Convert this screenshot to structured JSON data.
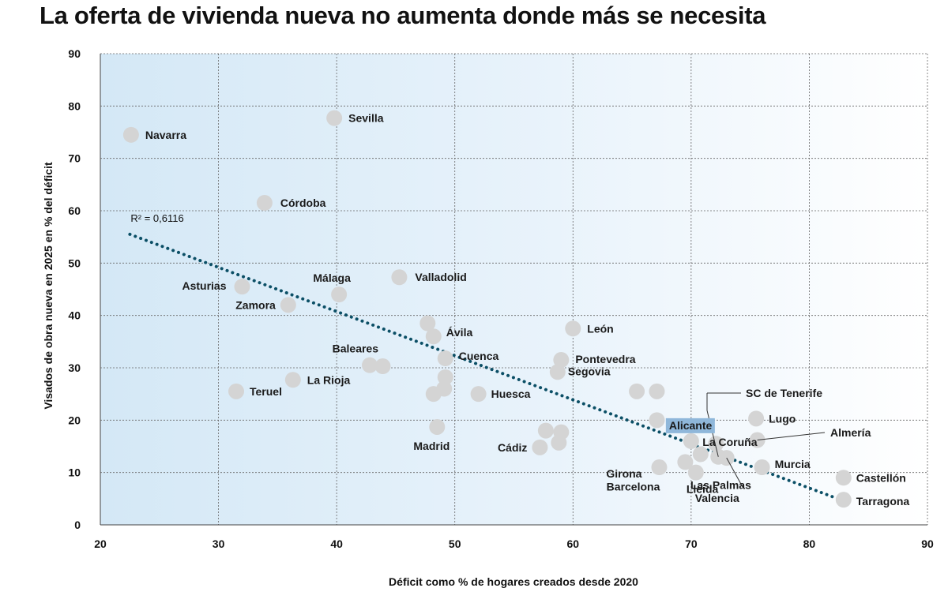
{
  "chart_data": {
    "type": "scatter",
    "title": "La oferta de vivienda nueva no aumenta donde más se necesita",
    "xlabel": "Déficit como % de hogares creados desde 2020",
    "ylabel": "Visados de obra nueva en 2025 en % del déficit",
    "xlim": [
      20,
      90
    ],
    "ylim": [
      0,
      90
    ],
    "xticks": [
      20,
      30,
      40,
      50,
      60,
      70,
      80,
      90
    ],
    "yticks": [
      0,
      10,
      20,
      30,
      40,
      50,
      60,
      70,
      80,
      90
    ],
    "grid": true,
    "point_color": "#d4d4d4",
    "trendline": {
      "label": "R² = 0,6116",
      "x": [
        22.5,
        83
      ],
      "y": [
        55.5,
        4.5
      ],
      "color": "#0b4f66"
    },
    "highlight_color": "#8fb7da",
    "points": [
      {
        "label": "Navarra",
        "x": 22.6,
        "y": 74.5
      },
      {
        "label": "Sevilla",
        "x": 39.8,
        "y": 77.7
      },
      {
        "label": "Córdoba",
        "x": 33.9,
        "y": 61.5
      },
      {
        "label": "Asturias",
        "x": 32.0,
        "y": 45.5
      },
      {
        "label": "Zamora",
        "x": 35.9,
        "y": 42.0
      },
      {
        "label": "Málaga",
        "x": 40.2,
        "y": 44.0
      },
      {
        "label": "Valladolid",
        "x": 45.3,
        "y": 47.3
      },
      {
        "label": "",
        "x": 47.7,
        "y": 38.5
      },
      {
        "label": "Ávila",
        "x": 48.2,
        "y": 36.0
      },
      {
        "label": "Cuenca",
        "x": 49.2,
        "y": 31.8
      },
      {
        "label": "",
        "x": 49.2,
        "y": 28.2
      },
      {
        "label": "",
        "x": 49.1,
        "y": 26.0
      },
      {
        "label": "",
        "x": 48.2,
        "y": 25.0
      },
      {
        "label": "Baleares",
        "x": 42.8,
        "y": 30.5
      },
      {
        "label": "",
        "x": 43.9,
        "y": 30.3
      },
      {
        "label": "La Rioja",
        "x": 36.3,
        "y": 27.7
      },
      {
        "label": "Teruel",
        "x": 31.5,
        "y": 25.5
      },
      {
        "label": "Huesca",
        "x": 52.0,
        "y": 25.0
      },
      {
        "label": "Madrid",
        "x": 48.5,
        "y": 18.7
      },
      {
        "label": "Cádiz",
        "x": 57.2,
        "y": 14.8
      },
      {
        "label": "",
        "x": 57.7,
        "y": 18.0
      },
      {
        "label": "",
        "x": 58.8,
        "y": 15.7
      },
      {
        "label": "",
        "x": 59.0,
        "y": 17.7
      },
      {
        "label": "León",
        "x": 60.0,
        "y": 37.5
      },
      {
        "label": "Pontevedra",
        "x": 59.0,
        "y": 31.5
      },
      {
        "label": "Segovia",
        "x": 58.7,
        "y": 29.2
      },
      {
        "label": "",
        "x": 65.4,
        "y": 25.5
      },
      {
        "label": "",
        "x": 67.1,
        "y": 25.5
      },
      {
        "label": "",
        "x": 67.1,
        "y": 20.0
      },
      {
        "label": "Alicante",
        "x": 70.0,
        "y": 16.0
      },
      {
        "label": "Girona",
        "x": 67.3,
        "y": 11.0
      },
      {
        "label": "Barcelona",
        "x": 69.5,
        "y": 12.0
      },
      {
        "label": "Lleida",
        "x": 70.4,
        "y": 10.0
      },
      {
        "label": "Las Palmas",
        "x": 70.8,
        "y": 13.5
      },
      {
        "label": "La Coruña",
        "x": 72.1,
        "y": 15.5
      },
      {
        "label": "SC de Tenerife",
        "x": 72.3,
        "y": 13.0
      },
      {
        "label": "Valencia",
        "x": 73.0,
        "y": 12.8
      },
      {
        "label": "Lugo",
        "x": 75.5,
        "y": 20.3
      },
      {
        "label": "Almería",
        "x": 75.6,
        "y": 16.2
      },
      {
        "label": "Murcia",
        "x": 76.0,
        "y": 11.0
      },
      {
        "label": "Castellón",
        "x": 82.9,
        "y": 9.0
      },
      {
        "label": "Tarragona",
        "x": 82.9,
        "y": 4.8
      }
    ]
  }
}
